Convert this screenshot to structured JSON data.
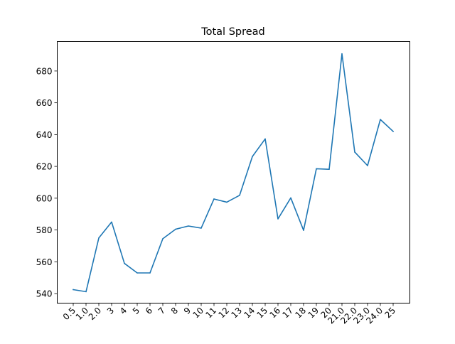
{
  "chart_data": {
    "type": "line",
    "title": "Total Spread",
    "xlabel": "",
    "ylabel": "",
    "categories": [
      "0.5",
      "1.0",
      "2.0",
      "3",
      "4",
      "5",
      "6",
      "7",
      "8",
      "9",
      "10",
      "11",
      "12",
      "13",
      "14",
      "15",
      "16",
      "17",
      "18",
      "19",
      "20",
      "21.0",
      "22.0",
      "23.0",
      "24.0",
      "25"
    ],
    "series": [
      {
        "color": "#1f77b4",
        "values": [
          542.5,
          541.2,
          575.0,
          585.0,
          559.0,
          553.0,
          553.0,
          574.5,
          580.5,
          582.5,
          581.2,
          599.5,
          597.5,
          601.8,
          626.2,
          637.3,
          587.0,
          600.2,
          579.8,
          618.5,
          618.2,
          690.8,
          629.0,
          620.5,
          649.5,
          642.0
        ]
      }
    ],
    "ylim": [
      534,
      698.5
    ],
    "yticks": [
      540,
      560,
      580,
      600,
      620,
      640,
      660,
      680
    ],
    "grid": false,
    "legend": "none"
  }
}
